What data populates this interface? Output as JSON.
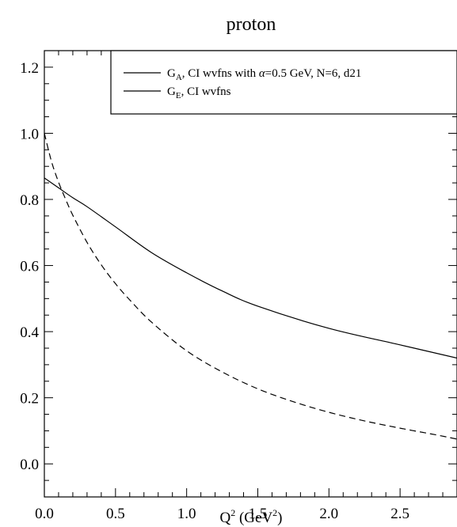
{
  "chart_data": {
    "type": "line",
    "title": "proton",
    "xlabel": {
      "base": "Q",
      "sup": "2",
      "unit_open": " (GeV",
      "unit_sup": "2",
      "unit_close": ")"
    },
    "ylabel": "",
    "xlim": [
      0,
      2.9
    ],
    "ylim": [
      -0.1,
      1.25
    ],
    "xticks": [
      0.0,
      0.5,
      1.0,
      1.5,
      2.0,
      2.5
    ],
    "xtick_labels": [
      "0.0",
      "0.5",
      "1.0",
      "1.5",
      "2.0",
      "2.5"
    ],
    "xminor_step": 0.1,
    "yticks": [
      0.0,
      0.2,
      0.4,
      0.6,
      0.8,
      1.0,
      1.2
    ],
    "ytick_labels": [
      "0.0",
      "0.2",
      "0.4",
      "0.6",
      "0.8",
      "1.0",
      "1.2"
    ],
    "yminor_step": 0.05,
    "grid": false,
    "legend_position": "top-right",
    "legend": [
      {
        "base": "G",
        "sub": "A",
        "text_pre": ", CI wvfns with ",
        "greek": "α",
        "text_post": "=0.5 GeV, N=6, d21",
        "style": "solid"
      },
      {
        "base": "G",
        "sub": "E",
        "text_pre": ", CI wvfns",
        "greek": "",
        "text_post": "",
        "style": "solid"
      }
    ],
    "series": [
      {
        "style": "solid",
        "x": [
          0.0,
          0.1,
          0.2,
          0.3,
          0.5,
          0.75,
          1.0,
          1.25,
          1.5,
          2.0,
          2.5,
          2.9
        ],
        "y": [
          0.865,
          0.835,
          0.805,
          0.778,
          0.717,
          0.64,
          0.578,
          0.523,
          0.477,
          0.41,
          0.36,
          0.32
        ]
      },
      {
        "style": "dashed",
        "x": [
          0.0,
          0.05,
          0.1,
          0.15,
          0.2,
          0.3,
          0.4,
          0.5,
          0.6,
          0.75,
          1.0,
          1.25,
          1.5,
          1.75,
          2.0,
          2.25,
          2.5,
          2.75,
          2.9
        ],
        "y": [
          1.0,
          0.915,
          0.852,
          0.8,
          0.752,
          0.67,
          0.602,
          0.545,
          0.496,
          0.43,
          0.342,
          0.278,
          0.227,
          0.188,
          0.156,
          0.13,
          0.108,
          0.088,
          0.075
        ]
      }
    ]
  }
}
